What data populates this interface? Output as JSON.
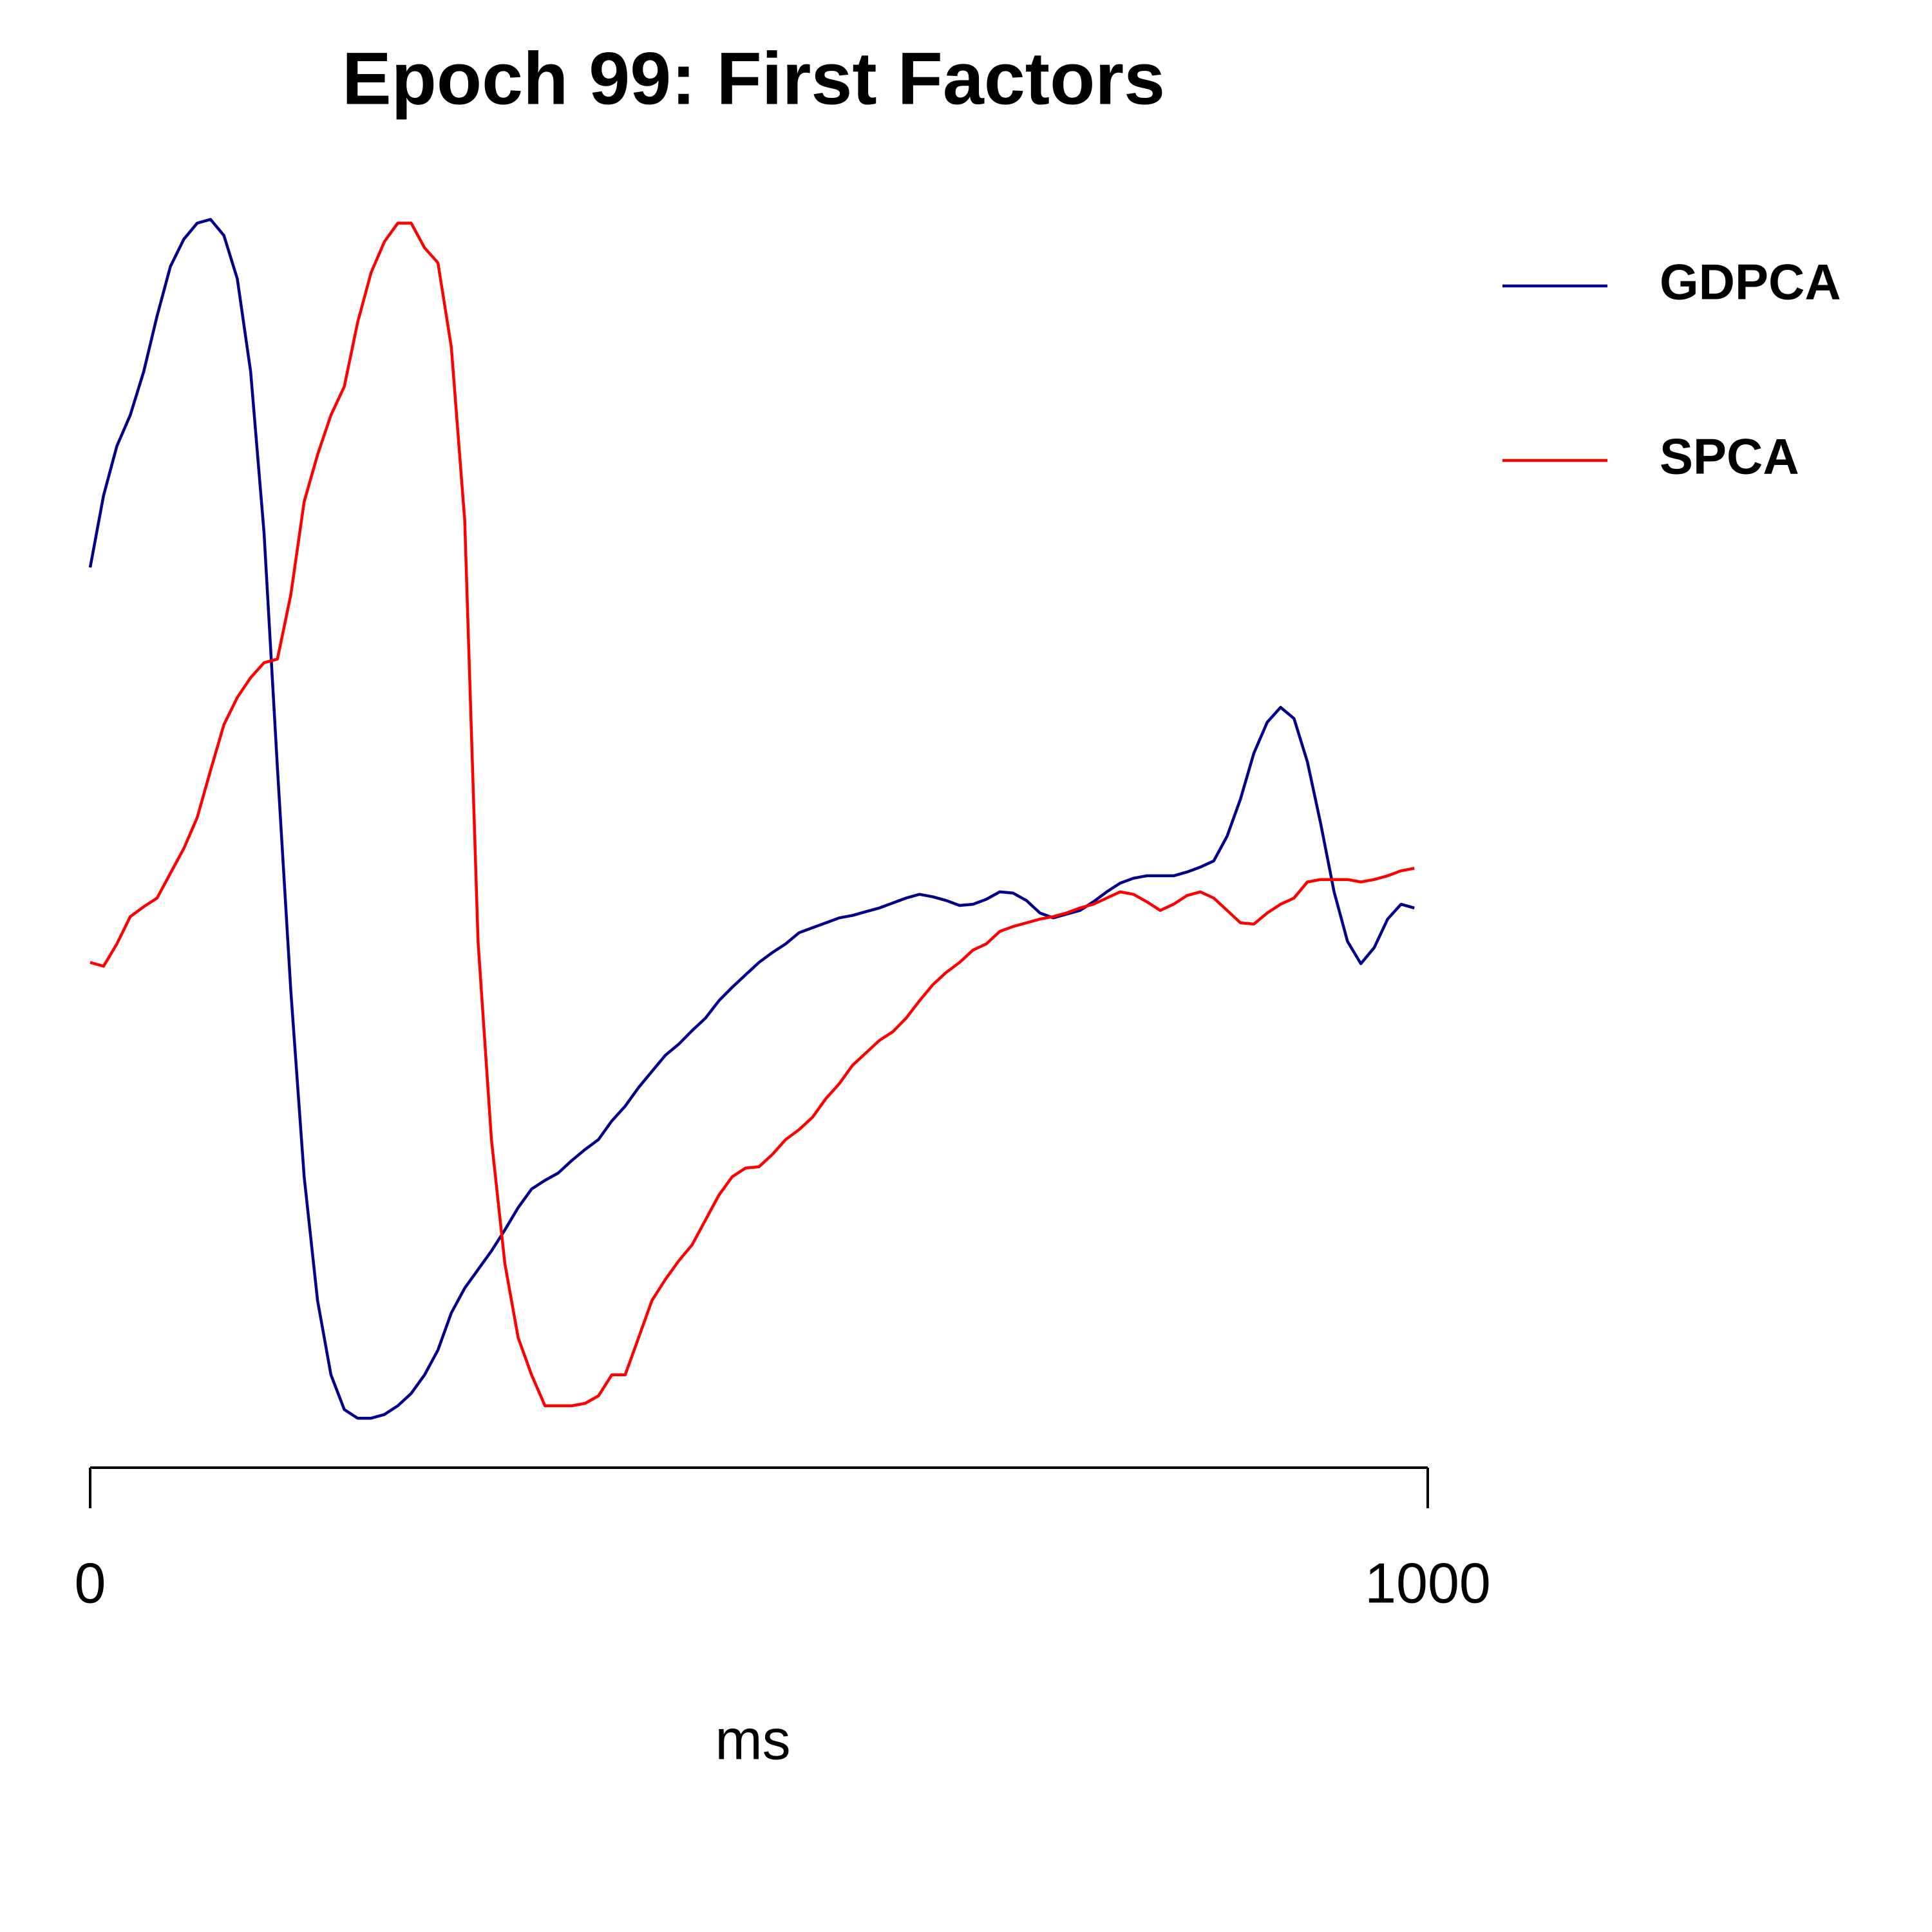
{
  "chart_data": {
    "type": "line",
    "title": "Epoch 99: First Factors",
    "xlabel": "ms",
    "x": [
      0,
      10,
      20,
      30,
      40,
      50,
      60,
      70,
      80,
      90,
      100,
      110,
      120,
      130,
      140,
      150,
      160,
      170,
      180,
      190,
      200,
      210,
      220,
      230,
      240,
      250,
      260,
      270,
      280,
      290,
      300,
      310,
      320,
      330,
      340,
      350,
      360,
      370,
      380,
      390,
      400,
      410,
      420,
      430,
      440,
      450,
      460,
      470,
      480,
      490,
      500,
      510,
      520,
      530,
      540,
      550,
      560,
      570,
      580,
      590,
      600,
      610,
      620,
      630,
      640,
      650,
      660,
      670,
      680,
      690,
      700,
      710,
      720,
      730,
      740,
      750,
      760,
      770,
      780,
      790,
      800,
      810,
      820,
      830,
      840,
      850,
      860,
      870,
      880,
      890,
      900,
      910,
      920,
      930,
      940,
      950,
      960,
      970,
      980,
      990
    ],
    "series": [
      {
        "name": "GDPCA",
        "color": "#00008b",
        "values": [
          70.2,
          76,
          80,
          82.5,
          86,
          90.5,
          94.5,
          96.7,
          98,
          98.3,
          97,
          93.5,
          86,
          73,
          54,
          36,
          21,
          11,
          5,
          2.2,
          1.5,
          1.5,
          1.8,
          2.5,
          3.5,
          5,
          7,
          10,
          12,
          13.5,
          15,
          16.7,
          18.5,
          20,
          20.7,
          21.3,
          22.3,
          23.2,
          24,
          25.5,
          26.7,
          28.2,
          29.5,
          30.8,
          31.7,
          32.8,
          33.8,
          35.2,
          36.3,
          37.3,
          38.3,
          39.1,
          39.8,
          40.7,
          41.1,
          41.5,
          41.9,
          42.1,
          42.4,
          42.7,
          43.1,
          43.5,
          43.8,
          43.6,
          43.3,
          42.9,
          43,
          43.4,
          44,
          43.9,
          43.3,
          42.3,
          41.9,
          42.2,
          42.5,
          43.2,
          44,
          44.7,
          45.1,
          45.3,
          45.3,
          45.3,
          45.6,
          46,
          46.5,
          48.5,
          51.5,
          55.2,
          57.7,
          58.9,
          58,
          54.5,
          49.5,
          44,
          40,
          38.2,
          39.5,
          41.8,
          43,
          42.7
        ]
      },
      {
        "name": "SPCA",
        "color": "#ff0000",
        "values": [
          38.3,
          38,
          39.8,
          42,
          42.8,
          43.5,
          45.5,
          47.5,
          50,
          53.8,
          57.5,
          59.7,
          61.3,
          62.5,
          62.8,
          68,
          75.5,
          79.3,
          82.5,
          84.8,
          90,
          94,
          96.5,
          98,
          98,
          96,
          94.8,
          88,
          74,
          40,
          24,
          14,
          8,
          5,
          2.5,
          2.5,
          2.5,
          2.7,
          3.3,
          5,
          5,
          8,
          11,
          12.7,
          14.2,
          15.5,
          17.5,
          19.5,
          21,
          21.7,
          21.8,
          22.8,
          24,
          24.8,
          25.8,
          27.3,
          28.5,
          30,
          31,
          32,
          32.7,
          33.8,
          35.2,
          36.5,
          37.5,
          38.3,
          39.3,
          39.8,
          40.8,
          41.2,
          41.5,
          41.8,
          42,
          42.3,
          42.7,
          43,
          43.5,
          44,
          43.8,
          43.2,
          42.5,
          43,
          43.7,
          44,
          43.5,
          42.5,
          41.5,
          41.4,
          42.3,
          43,
          43.5,
          44.8,
          45,
          45,
          45,
          44.8,
          45,
          45.3,
          45.7,
          45.9
        ]
      }
    ],
    "xlim": [
      0,
      1000
    ],
    "xticks": [
      0,
      1000
    ],
    "ylim": [
      0,
      100
    ],
    "grid": false,
    "legend": "right"
  }
}
